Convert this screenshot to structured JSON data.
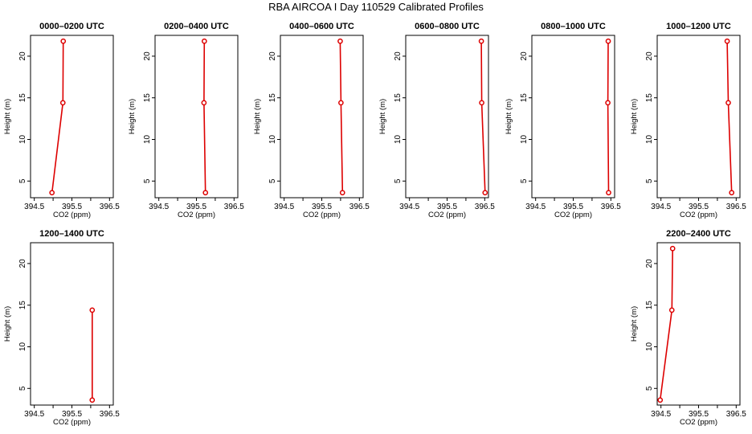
{
  "title": "RBA AIRCOA I  Day 110529  Calibrated Profiles",
  "colors": {
    "series": "#dd0000",
    "axis": "#000000",
    "background": "#ffffff"
  },
  "chart_data": [
    {
      "type": "line",
      "title": "0000–0200 UTC",
      "xlabel": "CO2 (ppm)",
      "ylabel": "Height (m)",
      "xlim": [
        394.4,
        396.6
      ],
      "ylim": [
        3,
        22.5
      ],
      "xticks": [
        "394.5",
        "395.5",
        "396.5"
      ],
      "yticks": [
        "5",
        "10",
        "15",
        "20"
      ],
      "x": [
        394.97,
        395.26,
        395.27
      ],
      "y": [
        3.6,
        14.4,
        21.8
      ]
    },
    {
      "type": "line",
      "title": "0200–0400 UTC",
      "xlabel": "CO2 (ppm)",
      "ylabel": "Height (m)",
      "xlim": [
        394.4,
        396.6
      ],
      "ylim": [
        3,
        22.5
      ],
      "xticks": [
        "394.5",
        "395.5",
        "396.5"
      ],
      "yticks": [
        "5",
        "10",
        "15",
        "20"
      ],
      "x": [
        395.74,
        395.7,
        395.71
      ],
      "y": [
        3.6,
        14.4,
        21.8
      ]
    },
    {
      "type": "line",
      "title": "0400–0600 UTC",
      "xlabel": "CO2 (ppm)",
      "ylabel": "Height (m)",
      "xlim": [
        394.4,
        396.6
      ],
      "ylim": [
        3,
        22.5
      ],
      "xticks": [
        "394.5",
        "395.5",
        "396.5"
      ],
      "yticks": [
        "5",
        "10",
        "15",
        "20"
      ],
      "x": [
        396.05,
        396.01,
        395.99
      ],
      "y": [
        3.6,
        14.4,
        21.8
      ]
    },
    {
      "type": "line",
      "title": "0600–0800 UTC",
      "xlabel": "CO2 (ppm)",
      "ylabel": "Height (m)",
      "xlim": [
        394.4,
        396.6
      ],
      "ylim": [
        3,
        22.5
      ],
      "xticks": [
        "394.5",
        "395.5",
        "396.5"
      ],
      "yticks": [
        "5",
        "10",
        "15",
        "20"
      ],
      "x": [
        396.51,
        396.42,
        396.41
      ],
      "y": [
        3.6,
        14.4,
        21.8
      ]
    },
    {
      "type": "line",
      "title": "0800–1000 UTC",
      "xlabel": "CO2 (ppm)",
      "ylabel": "Height (m)",
      "xlim": [
        394.4,
        396.6
      ],
      "ylim": [
        3,
        22.5
      ],
      "xticks": [
        "394.5",
        "395.5",
        "396.5"
      ],
      "yticks": [
        "5",
        "10",
        "15",
        "20"
      ],
      "x": [
        396.44,
        396.42,
        396.43
      ],
      "y": [
        3.6,
        14.4,
        21.8
      ]
    },
    {
      "type": "line",
      "title": "1000–1200 UTC",
      "xlabel": "CO2 (ppm)",
      "ylabel": "Height (m)",
      "xlim": [
        394.4,
        396.6
      ],
      "ylim": [
        3,
        22.5
      ],
      "xticks": [
        "394.5",
        "395.5",
        "396.5"
      ],
      "yticks": [
        "5",
        "10",
        "15",
        "20"
      ],
      "x": [
        396.38,
        396.29,
        396.26
      ],
      "y": [
        3.6,
        14.4,
        21.8
      ]
    },
    {
      "type": "line",
      "title": "1200–1400 UTC",
      "xlabel": "CO2 (ppm)",
      "ylabel": "Height (m)",
      "xlim": [
        394.4,
        396.6
      ],
      "ylim": [
        3,
        22.5
      ],
      "xticks": [
        "394.5",
        "395.5",
        "396.5"
      ],
      "yticks": [
        "5",
        "10",
        "15",
        "20"
      ],
      "x": [
        396.04,
        396.04
      ],
      "y": [
        3.6,
        14.4
      ]
    },
    {
      "type": "line",
      "title": "2200–2400 UTC",
      "xlabel": "CO2 (ppm)",
      "ylabel": "Height (m)",
      "xlim": [
        394.4,
        396.6
      ],
      "ylim": [
        3,
        22.5
      ],
      "xticks": [
        "394.5",
        "395.5",
        "396.5"
      ],
      "yticks": [
        "5",
        "10",
        "15",
        "20"
      ],
      "x": [
        394.48,
        394.79,
        394.81
      ],
      "y": [
        3.6,
        14.4,
        21.8
      ]
    }
  ]
}
